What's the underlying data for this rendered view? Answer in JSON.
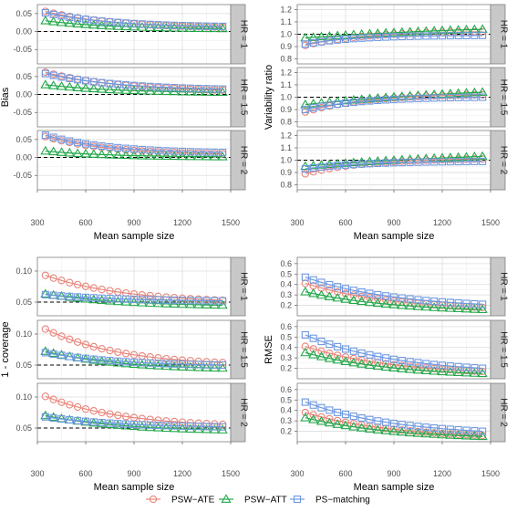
{
  "colors": {
    "psw_ate": "#E8867C",
    "psw_att": "#22A84A",
    "ps_matching": "#6E98E0",
    "panel_border": "#808080",
    "grid": "#dddddd",
    "strip_bg": "#c8c8c8"
  },
  "legend": [
    "PSW−ATE",
    "PSW−ATT",
    "PS−matching"
  ],
  "chart_data": [
    {
      "type": "line",
      "ylabel": "Bias",
      "xlabel": "Mean sample size",
      "x_ticks": [
        300,
        600,
        900,
        1200,
        1500
      ],
      "y_ticks": [
        -0.05,
        0.0,
        0.05
      ],
      "y_tick_labels": [
        "-0.05",
        "0.00",
        "0.05"
      ],
      "xlim": [
        300,
        1500
      ],
      "ylim": [
        -0.09,
        0.075
      ],
      "reference_line": 0.0,
      "panels": [
        {
          "strip": "HR = 1",
          "series": [
            {
              "name": "PSW−ATE",
              "start": 0.056,
              "end": 0.012,
              "rate": 2.6
            },
            {
              "name": "PSW−ATT",
              "start": 0.03,
              "end": 0.008,
              "rate": 2.6
            },
            {
              "name": "PS−matching",
              "start": 0.052,
              "end": 0.014,
              "rate": 2.6
            }
          ]
        },
        {
          "strip": "HR = 1.5",
          "series": [
            {
              "name": "PSW−ATE",
              "start": 0.062,
              "end": 0.012,
              "rate": 2.4
            },
            {
              "name": "PSW−ATT",
              "start": 0.027,
              "end": 0.006,
              "rate": 2.4
            },
            {
              "name": "PS−matching",
              "start": 0.058,
              "end": 0.015,
              "rate": 2.4
            }
          ]
        },
        {
          "strip": "HR = 2",
          "series": [
            {
              "name": "PSW−ATE",
              "start": 0.058,
              "end": 0.01,
              "rate": 2.8
            },
            {
              "name": "PSW−ATT",
              "start": 0.018,
              "end": 0.002,
              "rate": 2.8
            },
            {
              "name": "PS−matching",
              "start": 0.062,
              "end": 0.014,
              "rate": 2.8
            }
          ]
        }
      ]
    },
    {
      "type": "line",
      "ylabel": "Variability ratio",
      "xlabel": "Mean sample size",
      "x_ticks": [
        300,
        600,
        900,
        1200,
        1500
      ],
      "y_ticks": [
        0.8,
        0.9,
        1.0,
        1.1,
        1.2
      ],
      "y_tick_labels": [
        "0.8",
        "0.9",
        "1.0",
        "1.1",
        "1.2"
      ],
      "xlim": [
        300,
        1500
      ],
      "ylim": [
        0.76,
        1.24
      ],
      "reference_line": 1.0,
      "panels": [
        {
          "strip": "HR = 1",
          "series": [
            {
              "name": "PSW−ATE",
              "start": 0.91,
              "end": 1.02,
              "rate": 3.0
            },
            {
              "name": "PSW−ATT",
              "start": 0.97,
              "end": 1.04,
              "rate": 0.9
            },
            {
              "name": "PS−matching",
              "start": 0.92,
              "end": 0.99,
              "rate": 3.5
            }
          ]
        },
        {
          "strip": "HR = 1.5",
          "series": [
            {
              "name": "PSW−ATE",
              "start": 0.88,
              "end": 1.02,
              "rate": 3.0
            },
            {
              "name": "PSW−ATT",
              "start": 0.94,
              "end": 1.04,
              "rate": 0.9
            },
            {
              "name": "PS−matching",
              "start": 0.9,
              "end": 1.0,
              "rate": 3.0
            }
          ]
        },
        {
          "strip": "HR = 2",
          "series": [
            {
              "name": "PSW−ATE",
              "start": 0.89,
              "end": 1.01,
              "rate": 3.0
            },
            {
              "name": "PSW−ATT",
              "start": 0.95,
              "end": 1.03,
              "rate": 0.9
            },
            {
              "name": "PS−matching",
              "start": 0.93,
              "end": 0.99,
              "rate": 3.0
            }
          ]
        }
      ]
    },
    {
      "type": "line",
      "ylabel": "1 - coverage",
      "xlabel": "Mean sample size",
      "x_ticks": [
        300,
        600,
        900,
        1200,
        1500
      ],
      "y_ticks": [
        0.05,
        0.1
      ],
      "y_tick_labels": [
        "0.05",
        "0.10"
      ],
      "xlim": [
        300,
        1500
      ],
      "ylim": [
        0.028,
        0.122
      ],
      "reference_line": 0.05,
      "panels": [
        {
          "strip": "HR = 1",
          "series": [
            {
              "name": "PSW−ATE",
              "start": 0.093,
              "end": 0.053,
              "rate": 2.2
            },
            {
              "name": "PSW−ATT",
              "start": 0.063,
              "end": 0.045,
              "rate": 2.2
            },
            {
              "name": "PS−matching",
              "start": 0.062,
              "end": 0.052,
              "rate": 2.2
            }
          ]
        },
        {
          "strip": "HR = 1.5",
          "series": [
            {
              "name": "PSW−ATE",
              "start": 0.108,
              "end": 0.054,
              "rate": 2.4
            },
            {
              "name": "PSW−ATT",
              "start": 0.072,
              "end": 0.045,
              "rate": 2.4
            },
            {
              "name": "PS−matching",
              "start": 0.07,
              "end": 0.05,
              "rate": 2.4
            }
          ]
        },
        {
          "strip": "HR = 2",
          "series": [
            {
              "name": "PSW−ATE",
              "start": 0.101,
              "end": 0.056,
              "rate": 2.3
            },
            {
              "name": "PSW−ATT",
              "start": 0.07,
              "end": 0.047,
              "rate": 2.3
            },
            {
              "name": "PS−matching",
              "start": 0.068,
              "end": 0.052,
              "rate": 2.3
            }
          ]
        }
      ]
    },
    {
      "type": "line",
      "ylabel": "RMSE",
      "xlabel": "Mean sample size",
      "x_ticks": [
        300,
        600,
        900,
        1200,
        1500
      ],
      "y_ticks": [
        0.2,
        0.3,
        0.4,
        0.5,
        0.6
      ],
      "y_tick_labels": [
        "0.2",
        "0.3",
        "0.4",
        "0.5",
        "0.6"
      ],
      "xlim": [
        300,
        1500
      ],
      "ylim": [
        0.1,
        0.66
      ],
      "reference_line": null,
      "panels": [
        {
          "strip": "HR = 1",
          "series": [
            {
              "name": "PSW−ATE",
              "start": 0.41,
              "end": 0.18,
              "rate": 2.0
            },
            {
              "name": "PSW−ATT",
              "start": 0.33,
              "end": 0.16,
              "rate": 2.0
            },
            {
              "name": "PS−matching",
              "start": 0.47,
              "end": 0.21,
              "rate": 2.0
            }
          ]
        },
        {
          "strip": "HR = 1.5",
          "series": [
            {
              "name": "PSW−ATE",
              "start": 0.41,
              "end": 0.17,
              "rate": 2.0
            },
            {
              "name": "PSW−ATT",
              "start": 0.35,
              "end": 0.15,
              "rate": 2.0
            },
            {
              "name": "PS−matching",
              "start": 0.52,
              "end": 0.2,
              "rate": 2.0
            }
          ]
        },
        {
          "strip": "HR = 2",
          "series": [
            {
              "name": "PSW−ATE",
              "start": 0.38,
              "end": 0.16,
              "rate": 2.0
            },
            {
              "name": "PSW−ATT",
              "start": 0.33,
              "end": 0.15,
              "rate": 2.0
            },
            {
              "name": "PS−matching",
              "start": 0.48,
              "end": 0.2,
              "rate": 2.0
            }
          ]
        }
      ]
    }
  ]
}
